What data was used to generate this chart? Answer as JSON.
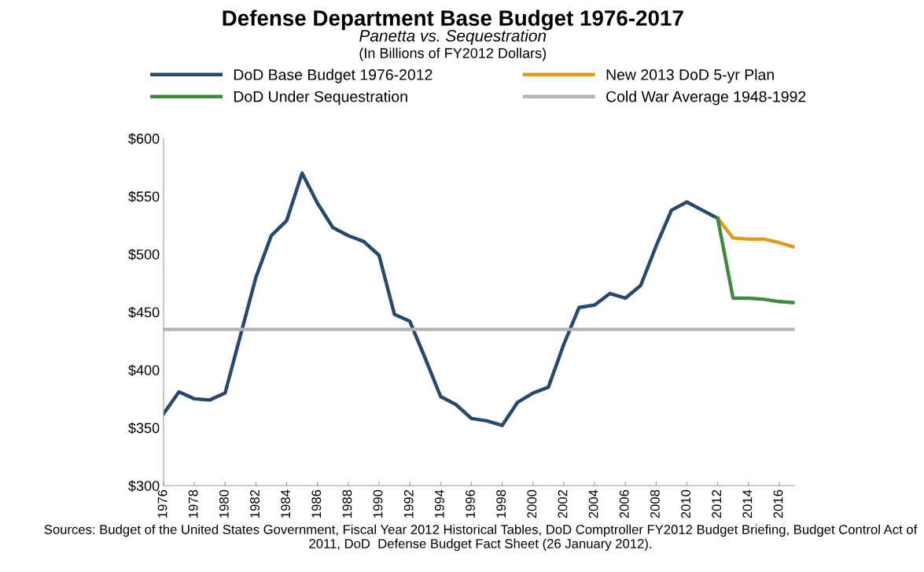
{
  "chart_data": {
    "type": "line",
    "title": "Defense Department Base Budget 1976-2017",
    "subtitle": "Panetta vs. Sequestration",
    "series": [
      {
        "name": "DoD Base Budget 1976-2012",
        "color": "#27496d",
        "x": [
          1976,
          1977,
          1978,
          1979,
          1980,
          1981,
          1982,
          1983,
          1984,
          1985,
          1986,
          1987,
          1988,
          1989,
          1990,
          1991,
          1992,
          1993,
          1994,
          1995,
          1996,
          1997,
          1998,
          1999,
          2000,
          2001,
          2002,
          2003,
          2004,
          2005,
          2006,
          2007,
          2008,
          2009,
          2010,
          2011,
          2012
        ],
        "values": [
          362,
          381,
          375,
          374,
          380,
          430,
          480,
          516,
          529,
          570,
          544,
          523,
          516,
          511,
          499,
          448,
          442,
          410,
          377,
          370,
          358,
          356,
          352,
          372,
          380,
          385,
          422,
          454,
          456,
          466,
          462,
          473,
          507,
          538,
          545,
          538,
          531
        ]
      },
      {
        "name": "New 2013 DoD 5-yr Plan",
        "color": "#e29a1c",
        "x": [
          2012,
          2013,
          2014,
          2015,
          2016,
          2017
        ],
        "values": [
          531,
          514,
          513,
          513,
          510,
          506
        ]
      },
      {
        "name": "DoD Under Sequestration",
        "color": "#3f8a3f",
        "x": [
          2012,
          2013,
          2014,
          2015,
          2016,
          2017
        ],
        "values": [
          531,
          462,
          462,
          461,
          459,
          458
        ]
      },
      {
        "name": "Cold War Average 1948-1992",
        "color": "#b4b4b4",
        "x": [
          1976,
          2017
        ],
        "values": [
          435,
          435
        ]
      }
    ],
    "xlim": [
      1976,
      2017
    ],
    "xticks": [
      1976,
      1978,
      1980,
      1982,
      1984,
      1986,
      1988,
      1990,
      1992,
      1994,
      1996,
      1998,
      2000,
      2002,
      2004,
      2006,
      2008,
      2010,
      2012,
      2014,
      2016
    ],
    "ylim": [
      300,
      600
    ],
    "yticks": [
      {
        "value": 300,
        "label": "$300"
      },
      {
        "value": 350,
        "label": "$350"
      },
      {
        "value": 400,
        "label": "$400"
      },
      {
        "value": 450,
        "label": "$450"
      },
      {
        "value": 500,
        "label": "$500"
      },
      {
        "value": 550,
        "label": "$550"
      },
      {
        "value": 600,
        "label": "$600"
      }
    ],
    "grid": false,
    "legend": "top",
    "marker": "none",
    "line_style": "solid",
    "annotations": [
      "(In Billions of FY2012 Dollars)",
      "Sources: Budget of the United States Government, Fiscal Year 2012 Historical Tables, DoD Comptroller FY2012 Budget Briefing, Budget Control Act of 2011, DoD  Defense Budget Fact Sheet (26 January 2012)."
    ]
  }
}
